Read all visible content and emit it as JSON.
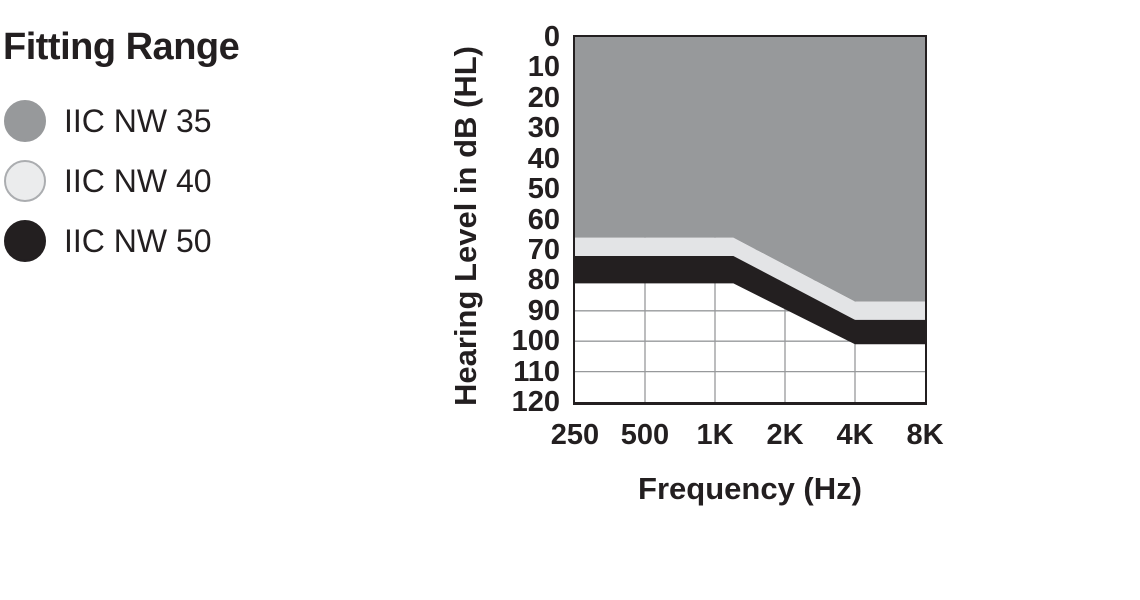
{
  "chart_data": {
    "type": "area",
    "title": "Fitting Range",
    "xlabel": "Frequency (Hz)",
    "ylabel": "Hearing Level in dB (HL)",
    "x_scale": "log2-octaves",
    "x_range_hz": [
      250,
      8000
    ],
    "x_ticks": [
      {
        "label": "250",
        "hz": 250
      },
      {
        "label": "500",
        "hz": 500
      },
      {
        "label": "1K",
        "hz": 1000
      },
      {
        "label": "2K",
        "hz": 2000
      },
      {
        "label": "4K",
        "hz": 4000
      },
      {
        "label": "8K",
        "hz": 8000
      }
    ],
    "ylim": [
      0,
      120
    ],
    "y_axis_direction": "reversed (0 dB at top, 120 dB at bottom)",
    "y_ticks": [
      0,
      10,
      20,
      30,
      40,
      50,
      60,
      70,
      80,
      90,
      100,
      110,
      120
    ],
    "grid": {
      "show": true,
      "vertical_hz": [
        500,
        1000,
        2000,
        4000
      ],
      "horizontal_db": [
        10,
        20,
        30,
        40,
        50,
        60,
        70,
        80,
        90,
        100,
        110
      ],
      "color": "#97999b"
    },
    "legend": [
      {
        "label": "IIC NW 35",
        "color": "#97999b",
        "border": "#97999b"
      },
      {
        "label": "IIC NW 40",
        "color": "#ebeced",
        "border": "#abadb0"
      },
      {
        "label": "IIC NW 50",
        "color": "#231f20",
        "border": "#231f20"
      }
    ],
    "bands": [
      {
        "name": "IIC NW 35",
        "color": "#97999b",
        "upper_db_points": [
          [
            250,
            0
          ],
          [
            8000,
            0
          ]
        ],
        "lower_db_points": [
          [
            250,
            66
          ],
          [
            1200,
            66
          ],
          [
            4000,
            87
          ],
          [
            8000,
            87
          ]
        ]
      },
      {
        "name": "IIC NW 40",
        "color": "#e3e4e6",
        "upper_db_points": [
          [
            250,
            66
          ],
          [
            1200,
            66
          ],
          [
            4000,
            87
          ],
          [
            8000,
            87
          ]
        ],
        "lower_db_points": [
          [
            250,
            72
          ],
          [
            1200,
            72
          ],
          [
            4000,
            93
          ],
          [
            8000,
            93
          ]
        ]
      },
      {
        "name": "IIC NW 50",
        "color": "#231f20",
        "upper_db_points": [
          [
            250,
            72
          ],
          [
            1200,
            72
          ],
          [
            4000,
            93
          ],
          [
            8000,
            93
          ]
        ],
        "lower_db_points": [
          [
            250,
            81
          ],
          [
            1200,
            81
          ],
          [
            4000,
            101
          ],
          [
            8000,
            101
          ]
        ]
      }
    ],
    "frame_color": "#231f20",
    "ink_color": "#231f20",
    "background": "#ffffff"
  }
}
